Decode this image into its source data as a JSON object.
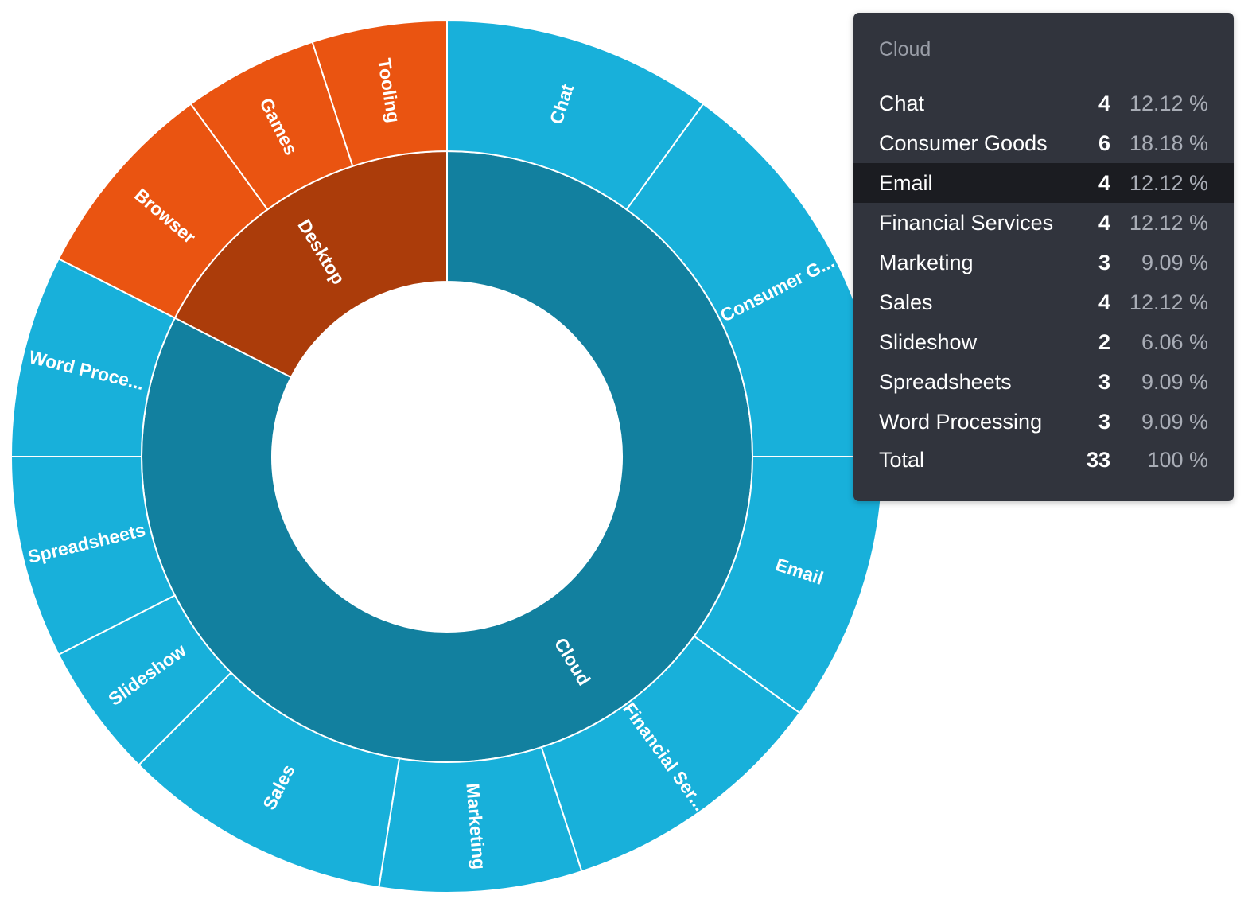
{
  "chart_data": {
    "type": "sunburst",
    "colors": {
      "Cloud": {
        "inner": "#12809f",
        "outer": "#18b0da"
      },
      "Desktop": {
        "inner": "#ab3c0a",
        "outer": "#ea5411"
      }
    },
    "hierarchy": [
      {
        "name": "Cloud",
        "label": "Cloud",
        "children": [
          {
            "name": "Chat",
            "label": "Chat",
            "value": 4
          },
          {
            "name": "Consumer Goods",
            "label": "Consumer G...",
            "value": 6
          },
          {
            "name": "Email",
            "label": "Email",
            "value": 4
          },
          {
            "name": "Financial Services",
            "label": "Financial Ser...",
            "value": 4
          },
          {
            "name": "Marketing",
            "label": "Marketing",
            "value": 3
          },
          {
            "name": "Sales",
            "label": "Sales",
            "value": 4
          },
          {
            "name": "Slideshow",
            "label": "Slideshow",
            "value": 2
          },
          {
            "name": "Spreadsheets",
            "label": "Spreadsheets",
            "value": 3
          },
          {
            "name": "Word Processing",
            "label": "Word Proce...",
            "value": 3
          }
        ]
      },
      {
        "name": "Desktop",
        "label": "Desktop",
        "children": [
          {
            "name": "Browser",
            "label": "Browser",
            "value": 3
          },
          {
            "name": "Games",
            "label": "Games",
            "value": 2
          },
          {
            "name": "Tooling",
            "label": "Tooling",
            "value": 2
          }
        ]
      }
    ]
  },
  "tooltip": {
    "title": "Cloud",
    "highlighted": "Email",
    "rows": [
      {
        "label": "Chat",
        "count": "4",
        "percent": "12.12 %"
      },
      {
        "label": "Consumer Goods",
        "count": "6",
        "percent": "18.18 %"
      },
      {
        "label": "Email",
        "count": "4",
        "percent": "12.12 %"
      },
      {
        "label": "Financial Services",
        "count": "4",
        "percent": "12.12 %"
      },
      {
        "label": "Marketing",
        "count": "3",
        "percent": "9.09 %"
      },
      {
        "label": "Sales",
        "count": "4",
        "percent": "12.12 %"
      },
      {
        "label": "Slideshow",
        "count": "2",
        "percent": "6.06 %"
      },
      {
        "label": "Spreadsheets",
        "count": "3",
        "percent": "9.09 %"
      },
      {
        "label": "Word Processing",
        "count": "3",
        "percent": "9.09 %"
      }
    ],
    "total": {
      "label": "Total",
      "count": "33",
      "percent": "100 %"
    }
  }
}
